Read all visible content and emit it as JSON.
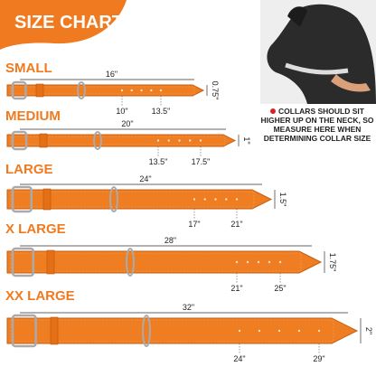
{
  "header": {
    "title": "SIZE CHART"
  },
  "note": "COLLARS SHOULD SIT HIGHER UP ON THE NECK, SO MEASURE HERE WHEN DETERMINING COLLAR SIZE",
  "sizes": [
    {
      "name": "SMALL",
      "length": "16\"",
      "min": "10\"",
      "max": "13.5\"",
      "width": "0.75\""
    },
    {
      "name": "MEDIUM",
      "length": "20\"",
      "min": "13.5\"",
      "max": "17.5\"",
      "width": "1\""
    },
    {
      "name": "LARGE",
      "length": "24\"",
      "min": "17\"",
      "max": "21\"",
      "width": "1.5\""
    },
    {
      "name": "X LARGE",
      "length": "28\"",
      "min": "21\"",
      "max": "25\"",
      "width": "1.75\""
    },
    {
      "name": "XX LARGE",
      "length": "32\"",
      "min": "24\"",
      "max": "29\"",
      "width": "2\""
    }
  ]
}
